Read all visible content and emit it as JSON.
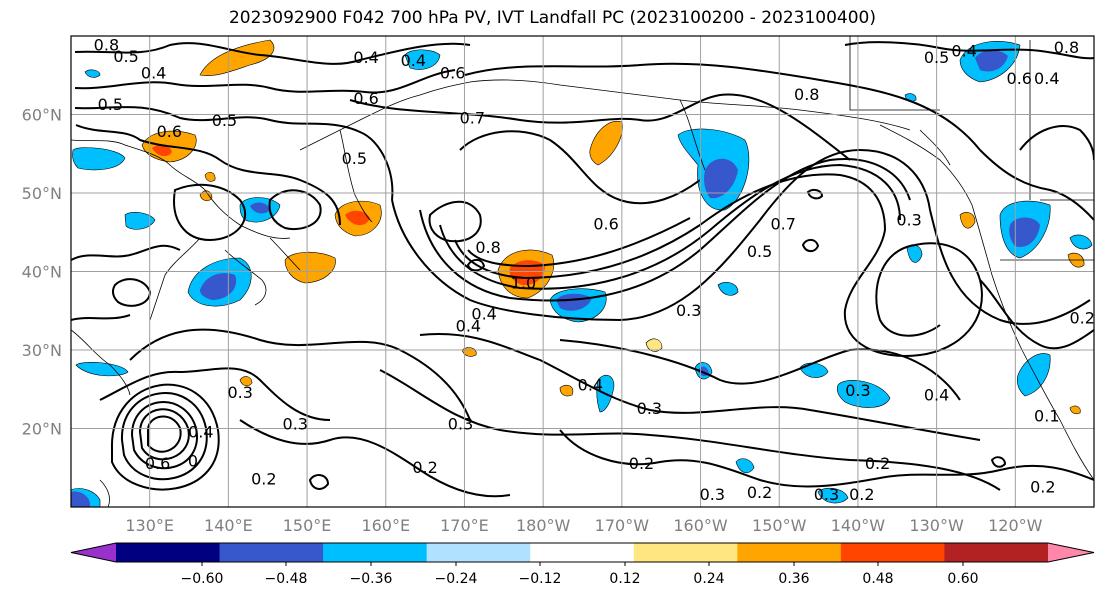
{
  "chart_data": {
    "type": "contour_map",
    "title": "2023092900 F042 700 hPa PV, IVT Landfall PC (2023100200 - 2023100400)",
    "projection": "equirectangular",
    "lon_range": [
      120,
      250
    ],
    "lat_range": [
      10,
      70
    ],
    "lon_ticks": [
      130,
      140,
      150,
      160,
      170,
      180,
      190,
      200,
      210,
      220,
      230,
      240
    ],
    "lon_tick_labels": [
      "130°E",
      "140°E",
      "150°E",
      "160°E",
      "170°E",
      "180°W",
      "170°W",
      "160°W",
      "150°W",
      "140°W",
      "130°W",
      "120°W"
    ],
    "lat_ticks": [
      20,
      30,
      40,
      50,
      60
    ],
    "lat_tick_labels": [
      "20°N",
      "30°N",
      "40°N",
      "50°N",
      "60°N"
    ],
    "grid": true,
    "contour_variable": "700 hPa PV",
    "contour_labels": [
      {
        "lon": 124.5,
        "lat": 68.8,
        "text": "0.8"
      },
      {
        "lon": 127.0,
        "lat": 67.3,
        "text": "0.5"
      },
      {
        "lon": 130.5,
        "lat": 65.2,
        "text": "0.4"
      },
      {
        "lon": 125.0,
        "lat": 61.2,
        "text": "0.5"
      },
      {
        "lon": 132.5,
        "lat": 57.8,
        "text": "0.6"
      },
      {
        "lon": 139.5,
        "lat": 59.2,
        "text": "0.5"
      },
      {
        "lon": 157.5,
        "lat": 67.2,
        "text": "0.4"
      },
      {
        "lon": 163.5,
        "lat": 66.8,
        "text": "0.4"
      },
      {
        "lon": 168.5,
        "lat": 65.2,
        "text": "0.6"
      },
      {
        "lon": 157.5,
        "lat": 62.0,
        "text": "0.6"
      },
      {
        "lon": 156.0,
        "lat": 54.3,
        "text": "0.5"
      },
      {
        "lon": 171.0,
        "lat": 59.5,
        "text": "0.7"
      },
      {
        "lon": 213.5,
        "lat": 62.5,
        "text": "0.8"
      },
      {
        "lon": 188.0,
        "lat": 46.0,
        "text": "0.6"
      },
      {
        "lon": 207.5,
        "lat": 42.5,
        "text": "0.5"
      },
      {
        "lon": 210.5,
        "lat": 46.0,
        "text": "0.7"
      },
      {
        "lon": 226.5,
        "lat": 46.5,
        "text": "0.3"
      },
      {
        "lon": 173.0,
        "lat": 43.0,
        "text": "0.8"
      },
      {
        "lon": 170.5,
        "lat": 33.0,
        "text": "0.4"
      },
      {
        "lon": 177.5,
        "lat": 38.5,
        "text": "1.0"
      },
      {
        "lon": 172.5,
        "lat": 34.5,
        "text": "0.4"
      },
      {
        "lon": 198.5,
        "lat": 35.0,
        "text": "0.3"
      },
      {
        "lon": 186.0,
        "lat": 25.5,
        "text": "0.4"
      },
      {
        "lon": 193.5,
        "lat": 22.5,
        "text": "0.3"
      },
      {
        "lon": 220.0,
        "lat": 24.8,
        "text": "0.3"
      },
      {
        "lon": 230.0,
        "lat": 24.2,
        "text": "0.4"
      },
      {
        "lon": 141.5,
        "lat": 24.5,
        "text": "0.3"
      },
      {
        "lon": 148.5,
        "lat": 20.5,
        "text": "0.3"
      },
      {
        "lon": 136.5,
        "lat": 19.5,
        "text": "0.4"
      },
      {
        "lon": 131.0,
        "lat": 15.5,
        "text": "0.6"
      },
      {
        "lon": 135.5,
        "lat": 15.8,
        "text": "0"
      },
      {
        "lon": 144.5,
        "lat": 13.5,
        "text": "0.2"
      },
      {
        "lon": 169.5,
        "lat": 20.5,
        "text": "0.3"
      },
      {
        "lon": 165.0,
        "lat": 15.0,
        "text": "0.2"
      },
      {
        "lon": 192.5,
        "lat": 15.5,
        "text": "0.2"
      },
      {
        "lon": 222.5,
        "lat": 15.5,
        "text": "0.2"
      },
      {
        "lon": 201.5,
        "lat": 11.5,
        "text": "0.3"
      },
      {
        "lon": 207.5,
        "lat": 11.8,
        "text": "0.2"
      },
      {
        "lon": 216.0,
        "lat": 11.5,
        "text": "0.3"
      },
      {
        "lon": 220.5,
        "lat": 11.5,
        "text": "0.2"
      },
      {
        "lon": 243.5,
        "lat": 12.5,
        "text": "0.2"
      },
      {
        "lon": 230.0,
        "lat": 67.2,
        "text": "0.5"
      },
      {
        "lon": 233.5,
        "lat": 68.0,
        "text": "0.4"
      },
      {
        "lon": 240.5,
        "lat": 64.5,
        "text": "0.6"
      },
      {
        "lon": 244.0,
        "lat": 64.5,
        "text": "0.4"
      },
      {
        "lon": 246.5,
        "lat": 68.5,
        "text": "0.8"
      },
      {
        "lon": 248.5,
        "lat": 34.0,
        "text": "0.2"
      },
      {
        "lon": 244.0,
        "lat": 21.5,
        "text": "0.1"
      }
    ],
    "colorbar": {
      "levels": [
        -0.6,
        -0.48,
        -0.36,
        -0.24,
        -0.12,
        0.12,
        0.24,
        0.36,
        0.48,
        0.6
      ],
      "tick_labels": [
        "−0.60",
        "−0.48",
        "−0.36",
        "−0.24",
        "−0.12",
        "0.12",
        "0.24",
        "0.36",
        "0.48",
        "0.60"
      ],
      "colors": [
        "#9932cc",
        "#000080",
        "#3658cc",
        "#00bfff",
        "#b0e2ff",
        "#ffffff",
        "#ffe680",
        "#ffa500",
        "#ff4500",
        "#b22222",
        "#ff88aa"
      ],
      "extend": "both"
    },
    "shaded_features": [
      {
        "lon": 132.5,
        "lat": 28.5,
        "value": 0.3
      },
      {
        "lon": 140.5,
        "lat": 43.0,
        "value": -0.4
      },
      {
        "lon": 144.0,
        "lat": 47.0,
        "value": -0.4
      },
      {
        "lon": 142.5,
        "lat": 66.5,
        "value": 0.3
      },
      {
        "lon": 132.0,
        "lat": 56.0,
        "value": 0.4
      },
      {
        "lon": 124.5,
        "lat": 55.0,
        "value": -0.3
      },
      {
        "lon": 129.5,
        "lat": 45.5,
        "value": -0.3
      },
      {
        "lon": 161.5,
        "lat": 47.0,
        "value": 0.4
      },
      {
        "lon": 148.5,
        "lat": 41.0,
        "value": 0.4
      },
      {
        "lon": 163.5,
        "lat": 66.5,
        "value": -0.3
      },
      {
        "lon": 179.0,
        "lat": 40.0,
        "value": 0.45
      },
      {
        "lon": 182.5,
        "lat": 36.0,
        "value": -0.4
      },
      {
        "lon": 189.0,
        "lat": 52.0,
        "value": 0.3
      },
      {
        "lon": 204.0,
        "lat": 53.0,
        "value": -0.4
      },
      {
        "lon": 202.5,
        "lat": 36.5,
        "value": -0.3
      },
      {
        "lon": 216.0,
        "lat": 26.0,
        "value": -0.3
      },
      {
        "lon": 244.5,
        "lat": 44.0,
        "value": -0.4
      },
      {
        "lon": 241.0,
        "lat": 66.0,
        "value": -0.4
      },
      {
        "lon": 248.0,
        "lat": 26.0,
        "value": -0.3
      },
      {
        "lon": 124.0,
        "lat": 11.5,
        "value": -0.5
      }
    ]
  }
}
